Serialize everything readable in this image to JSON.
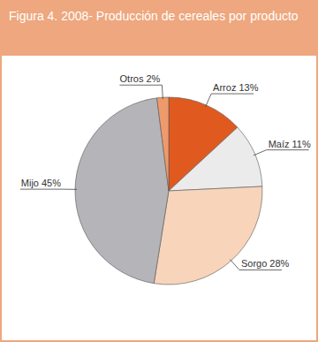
{
  "chart_data": {
    "type": "pie",
    "title": "Figura 4. 2008- Producción de cereales por producto",
    "categories": [
      "Arroz",
      "Maíz",
      "Sorgo",
      "Mijo",
      "Otros"
    ],
    "values": [
      13,
      11,
      28,
      45,
      2
    ],
    "value_labels": [
      "13%",
      "11%",
      "28%",
      "45%",
      "2%"
    ],
    "colors": [
      "#e05a20",
      "#ebebeb",
      "#f8d4ba",
      "#b4b4b9",
      "#ee9a6c"
    ],
    "data_labels": true
  }
}
